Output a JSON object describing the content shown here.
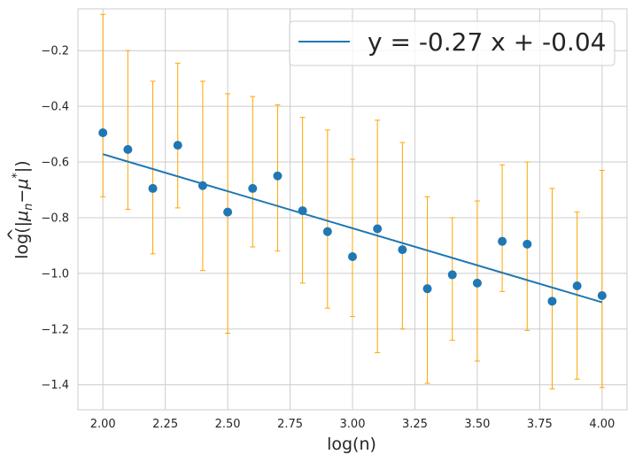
{
  "chart_data": {
    "type": "scatter",
    "xlabel": "log(n)",
    "ylabel_parts": {
      "prefix": "log(|",
      "mu": "μ",
      "hat": "^",
      "sub": "n",
      "minus": "−",
      "mu2": "μ",
      "star": "*",
      "suffix": "|)"
    },
    "xlim": [
      1.9,
      4.1
    ],
    "ylim": [
      -1.49,
      -0.05
    ],
    "x_ticks": [
      2.0,
      2.25,
      2.5,
      2.75,
      3.0,
      3.25,
      3.5,
      3.75,
      4.0
    ],
    "x_tick_labels": [
      "2.00",
      "2.25",
      "2.50",
      "2.75",
      "3.00",
      "3.25",
      "3.50",
      "3.75",
      "4.00"
    ],
    "y_ticks": [
      -0.2,
      -0.4,
      -0.6,
      -0.8,
      -1.0,
      -1.2,
      -1.4
    ],
    "y_tick_labels": [
      "−0.2",
      "−0.4",
      "−0.6",
      "−0.8",
      "−1.0",
      "−1.2",
      "−1.4"
    ],
    "grid": true,
    "legend_position": "top-right",
    "x": [
      2.0,
      2.1,
      2.2,
      2.3,
      2.4,
      2.5,
      2.6,
      2.7,
      2.8,
      2.9,
      3.0,
      3.1,
      3.2,
      3.3,
      3.4,
      3.5,
      3.6,
      3.7,
      3.8,
      3.9,
      4.0
    ],
    "y": [
      -0.495,
      -0.555,
      -0.695,
      -0.54,
      -0.685,
      -0.78,
      -0.695,
      -0.65,
      -0.775,
      -0.85,
      -0.94,
      -0.84,
      -0.915,
      -1.055,
      -1.005,
      -1.035,
      -0.885,
      -0.895,
      -1.1,
      -1.045,
      -1.08
    ],
    "error_low": [
      -0.725,
      -0.77,
      -0.93,
      -0.765,
      -0.99,
      -1.215,
      -0.905,
      -0.92,
      -1.035,
      -1.125,
      -1.155,
      -1.285,
      -1.2,
      -1.395,
      -1.24,
      -1.315,
      -1.065,
      -1.205,
      -1.415,
      -1.38,
      -1.41
    ],
    "error_high": [
      -0.07,
      -0.2,
      -0.31,
      -0.245,
      -0.31,
      -0.355,
      -0.365,
      -0.395,
      -0.44,
      -0.485,
      -0.59,
      -0.45,
      -0.53,
      -0.725,
      -0.8,
      -0.74,
      -0.61,
      -0.6,
      -0.695,
      -0.78,
      -0.63
    ],
    "fit": {
      "name": "y = -0.27 x + -0.04",
      "x": [
        2.0,
        4.0
      ],
      "y": [
        -0.572,
        -1.104
      ]
    },
    "colors": {
      "points": "#1f77b4",
      "fit_line": "#1f77b4",
      "error_bars": "#ffa500",
      "grid": "#cccccc"
    }
  }
}
